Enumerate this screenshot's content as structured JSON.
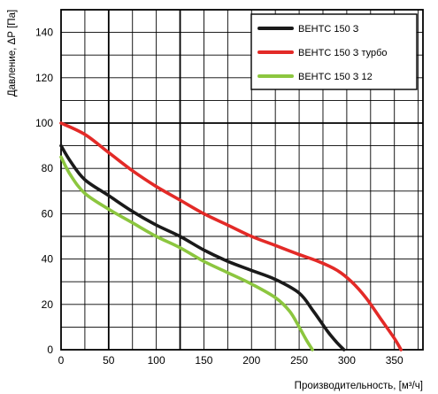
{
  "chart_data": {
    "type": "line",
    "xlabel": "Производительность, [м³/ч]",
    "ylabel": "Давление, ΔР [Па]",
    "xlim": [
      0,
      380
    ],
    "ylim": [
      0,
      150
    ],
    "x_ticks": [
      0,
      50,
      100,
      150,
      200,
      250,
      300,
      350
    ],
    "y_ticks": [
      0,
      20,
      40,
      60,
      80,
      100,
      120,
      140
    ],
    "x_tick_step_minor": 25,
    "y_tick_step_minor": 10,
    "grid": true,
    "major_grid_x": [
      50,
      125
    ],
    "major_grid_y": [
      100
    ],
    "legend_position": "top-right",
    "series": [
      {
        "name": "ВЕНТС 150 З",
        "color": "#1a1a1a",
        "points": [
          [
            0,
            90
          ],
          [
            10,
            83
          ],
          [
            25,
            75
          ],
          [
            50,
            68
          ],
          [
            75,
            61
          ],
          [
            100,
            55
          ],
          [
            125,
            50
          ],
          [
            150,
            44
          ],
          [
            175,
            39
          ],
          [
            200,
            35
          ],
          [
            225,
            31
          ],
          [
            250,
            25
          ],
          [
            265,
            17
          ],
          [
            280,
            8
          ],
          [
            290,
            3
          ],
          [
            297,
            0
          ]
        ]
      },
      {
        "name": "ВЕНТС 150 З турбо",
        "color": "#e32a27",
        "points": [
          [
            0,
            100
          ],
          [
            25,
            95
          ],
          [
            50,
            87
          ],
          [
            75,
            79
          ],
          [
            100,
            72
          ],
          [
            125,
            66
          ],
          [
            150,
            60
          ],
          [
            175,
            55
          ],
          [
            200,
            50
          ],
          [
            225,
            46
          ],
          [
            250,
            42
          ],
          [
            270,
            39
          ],
          [
            290,
            35
          ],
          [
            305,
            30
          ],
          [
            320,
            23
          ],
          [
            335,
            14
          ],
          [
            350,
            5
          ],
          [
            357,
            0
          ]
        ]
      },
      {
        "name": "ВЕНТС 150 З 12",
        "color": "#8cc63f",
        "points": [
          [
            0,
            85
          ],
          [
            10,
            77
          ],
          [
            25,
            69
          ],
          [
            50,
            62
          ],
          [
            75,
            56
          ],
          [
            100,
            50
          ],
          [
            125,
            45
          ],
          [
            150,
            39
          ],
          [
            175,
            34
          ],
          [
            200,
            29
          ],
          [
            225,
            23
          ],
          [
            240,
            17
          ],
          [
            250,
            10
          ],
          [
            258,
            4
          ],
          [
            264,
            0
          ]
        ]
      }
    ]
  }
}
